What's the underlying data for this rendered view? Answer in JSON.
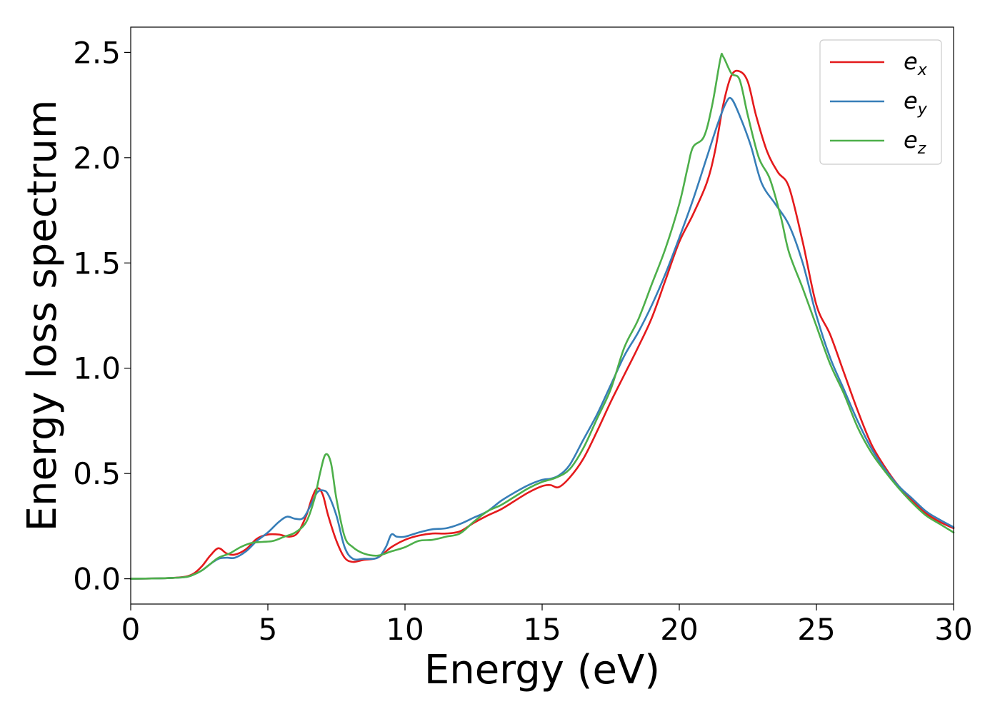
{
  "chart_data": {
    "type": "line",
    "xlabel": "Energy (eV)",
    "ylabel": "Energy loss spectrum",
    "xlim": [
      0,
      30
    ],
    "ylim": [
      -0.12,
      2.62
    ],
    "xticks": [
      0,
      5,
      10,
      15,
      20,
      25,
      30
    ],
    "xtick_labels": [
      "0",
      "5",
      "10",
      "15",
      "20",
      "25",
      "30"
    ],
    "yticks": [
      0.0,
      0.5,
      1.0,
      1.5,
      2.0,
      2.5
    ],
    "ytick_labels": [
      "0.0",
      "0.5",
      "1.0",
      "1.5",
      "2.0",
      "2.5"
    ],
    "grid": false,
    "legend_position": "top-right",
    "series": [
      {
        "name": "e",
        "subscript": "x",
        "color": "#e41a1c",
        "points": [
          [
            0,
            0
          ],
          [
            1,
            0.002
          ],
          [
            1.5,
            0.004
          ],
          [
            2,
            0.01
          ],
          [
            2.3,
            0.025
          ],
          [
            2.6,
            0.06
          ],
          [
            2.9,
            0.11
          ],
          [
            3.2,
            0.145
          ],
          [
            3.5,
            0.12
          ],
          [
            3.8,
            0.115
          ],
          [
            4.2,
            0.14
          ],
          [
            4.6,
            0.19
          ],
          [
            5,
            0.21
          ],
          [
            5.4,
            0.21
          ],
          [
            5.8,
            0.2
          ],
          [
            6.1,
            0.22
          ],
          [
            6.4,
            0.3
          ],
          [
            6.6,
            0.38
          ],
          [
            6.8,
            0.43
          ],
          [
            7.0,
            0.4
          ],
          [
            7.2,
            0.3
          ],
          [
            7.5,
            0.18
          ],
          [
            7.8,
            0.1
          ],
          [
            8.1,
            0.08
          ],
          [
            8.5,
            0.09
          ],
          [
            9,
            0.1
          ],
          [
            9.5,
            0.15
          ],
          [
            10,
            0.185
          ],
          [
            10.5,
            0.205
          ],
          [
            11,
            0.215
          ],
          [
            11.5,
            0.215
          ],
          [
            12,
            0.225
          ],
          [
            12.5,
            0.265
          ],
          [
            13,
            0.3
          ],
          [
            13.5,
            0.33
          ],
          [
            14,
            0.37
          ],
          [
            14.5,
            0.41
          ],
          [
            15,
            0.44
          ],
          [
            15.3,
            0.445
          ],
          [
            15.6,
            0.435
          ],
          [
            16,
            0.48
          ],
          [
            16.5,
            0.57
          ],
          [
            17,
            0.7
          ],
          [
            17.5,
            0.84
          ],
          [
            18,
            0.97
          ],
          [
            18.5,
            1.1
          ],
          [
            19,
            1.24
          ],
          [
            19.5,
            1.42
          ],
          [
            20,
            1.6
          ],
          [
            20.5,
            1.73
          ],
          [
            21,
            1.88
          ],
          [
            21.3,
            2.03
          ],
          [
            21.6,
            2.25
          ],
          [
            21.9,
            2.39
          ],
          [
            22.2,
            2.41
          ],
          [
            22.5,
            2.36
          ],
          [
            22.8,
            2.2
          ],
          [
            23.2,
            2.03
          ],
          [
            23.6,
            1.93
          ],
          [
            24,
            1.86
          ],
          [
            24.5,
            1.6
          ],
          [
            25,
            1.3
          ],
          [
            25.5,
            1.16
          ],
          [
            26,
            0.98
          ],
          [
            26.5,
            0.8
          ],
          [
            27,
            0.64
          ],
          [
            27.5,
            0.53
          ],
          [
            28,
            0.44
          ],
          [
            28.5,
            0.37
          ],
          [
            29,
            0.31
          ],
          [
            29.5,
            0.27
          ],
          [
            30,
            0.24
          ]
        ]
      },
      {
        "name": "e",
        "subscript": "y",
        "color": "#377eb8",
        "points": [
          [
            0,
            0
          ],
          [
            1,
            0.002
          ],
          [
            1.5,
            0.004
          ],
          [
            2,
            0.008
          ],
          [
            2.3,
            0.02
          ],
          [
            2.6,
            0.04
          ],
          [
            2.9,
            0.07
          ],
          [
            3.2,
            0.095
          ],
          [
            3.5,
            0.1
          ],
          [
            3.8,
            0.1
          ],
          [
            4.2,
            0.13
          ],
          [
            4.6,
            0.18
          ],
          [
            5,
            0.22
          ],
          [
            5.4,
            0.27
          ],
          [
            5.7,
            0.295
          ],
          [
            6.0,
            0.285
          ],
          [
            6.3,
            0.29
          ],
          [
            6.6,
            0.36
          ],
          [
            6.8,
            0.41
          ],
          [
            7.0,
            0.42
          ],
          [
            7.2,
            0.4
          ],
          [
            7.5,
            0.3
          ],
          [
            7.8,
            0.15
          ],
          [
            8.1,
            0.095
          ],
          [
            8.5,
            0.095
          ],
          [
            9,
            0.1
          ],
          [
            9.3,
            0.15
          ],
          [
            9.5,
            0.21
          ],
          [
            9.7,
            0.2
          ],
          [
            10,
            0.2
          ],
          [
            10.5,
            0.22
          ],
          [
            11,
            0.235
          ],
          [
            11.5,
            0.24
          ],
          [
            12,
            0.26
          ],
          [
            12.5,
            0.29
          ],
          [
            13,
            0.32
          ],
          [
            13.5,
            0.37
          ],
          [
            14,
            0.41
          ],
          [
            14.5,
            0.445
          ],
          [
            15,
            0.47
          ],
          [
            15.3,
            0.475
          ],
          [
            15.6,
            0.49
          ],
          [
            16,
            0.54
          ],
          [
            16.5,
            0.66
          ],
          [
            17,
            0.78
          ],
          [
            17.5,
            0.92
          ],
          [
            18,
            1.06
          ],
          [
            18.5,
            1.17
          ],
          [
            19,
            1.3
          ],
          [
            19.5,
            1.45
          ],
          [
            20,
            1.62
          ],
          [
            20.5,
            1.8
          ],
          [
            21,
            2.0
          ],
          [
            21.4,
            2.16
          ],
          [
            21.7,
            2.26
          ],
          [
            21.9,
            2.28
          ],
          [
            22.2,
            2.2
          ],
          [
            22.6,
            2.06
          ],
          [
            23,
            1.88
          ],
          [
            23.5,
            1.78
          ],
          [
            24,
            1.68
          ],
          [
            24.5,
            1.5
          ],
          [
            25,
            1.25
          ],
          [
            25.5,
            1.05
          ],
          [
            26,
            0.9
          ],
          [
            26.5,
            0.75
          ],
          [
            27,
            0.62
          ],
          [
            27.5,
            0.52
          ],
          [
            28,
            0.44
          ],
          [
            28.5,
            0.38
          ],
          [
            29,
            0.32
          ],
          [
            29.5,
            0.28
          ],
          [
            30,
            0.245
          ]
        ]
      },
      {
        "name": "e",
        "subscript": "z",
        "color": "#4daf4a",
        "points": [
          [
            0,
            0
          ],
          [
            1,
            0.002
          ],
          [
            1.5,
            0.004
          ],
          [
            2,
            0.008
          ],
          [
            2.3,
            0.02
          ],
          [
            2.6,
            0.04
          ],
          [
            2.9,
            0.07
          ],
          [
            3.2,
            0.1
          ],
          [
            3.6,
            0.12
          ],
          [
            4,
            0.15
          ],
          [
            4.4,
            0.17
          ],
          [
            4.8,
            0.175
          ],
          [
            5.2,
            0.18
          ],
          [
            5.6,
            0.2
          ],
          [
            6,
            0.22
          ],
          [
            6.4,
            0.27
          ],
          [
            6.7,
            0.38
          ],
          [
            6.9,
            0.5
          ],
          [
            7.1,
            0.59
          ],
          [
            7.3,
            0.55
          ],
          [
            7.5,
            0.38
          ],
          [
            7.8,
            0.2
          ],
          [
            8.1,
            0.15
          ],
          [
            8.5,
            0.12
          ],
          [
            9,
            0.11
          ],
          [
            9.5,
            0.13
          ],
          [
            10,
            0.15
          ],
          [
            10.5,
            0.18
          ],
          [
            11,
            0.185
          ],
          [
            11.5,
            0.2
          ],
          [
            12,
            0.215
          ],
          [
            12.5,
            0.27
          ],
          [
            13,
            0.32
          ],
          [
            13.5,
            0.35
          ],
          [
            14,
            0.39
          ],
          [
            14.5,
            0.43
          ],
          [
            15,
            0.46
          ],
          [
            15.5,
            0.48
          ],
          [
            16,
            0.52
          ],
          [
            16.5,
            0.62
          ],
          [
            17,
            0.76
          ],
          [
            17.5,
            0.9
          ],
          [
            18,
            1.1
          ],
          [
            18.5,
            1.23
          ],
          [
            19,
            1.4
          ],
          [
            19.5,
            1.57
          ],
          [
            20,
            1.78
          ],
          [
            20.3,
            1.95
          ],
          [
            20.5,
            2.05
          ],
          [
            20.9,
            2.1
          ],
          [
            21.2,
            2.25
          ],
          [
            21.5,
            2.47
          ],
          [
            21.6,
            2.48
          ],
          [
            21.9,
            2.4
          ],
          [
            22.2,
            2.37
          ],
          [
            22.5,
            2.2
          ],
          [
            22.9,
            2.0
          ],
          [
            23.3,
            1.9
          ],
          [
            23.7,
            1.72
          ],
          [
            24,
            1.55
          ],
          [
            24.5,
            1.38
          ],
          [
            25,
            1.2
          ],
          [
            25.5,
            1.02
          ],
          [
            26,
            0.88
          ],
          [
            26.5,
            0.72
          ],
          [
            27,
            0.6
          ],
          [
            27.5,
            0.51
          ],
          [
            28,
            0.43
          ],
          [
            28.5,
            0.36
          ],
          [
            29,
            0.3
          ],
          [
            29.5,
            0.26
          ],
          [
            30,
            0.22
          ]
        ]
      }
    ]
  }
}
